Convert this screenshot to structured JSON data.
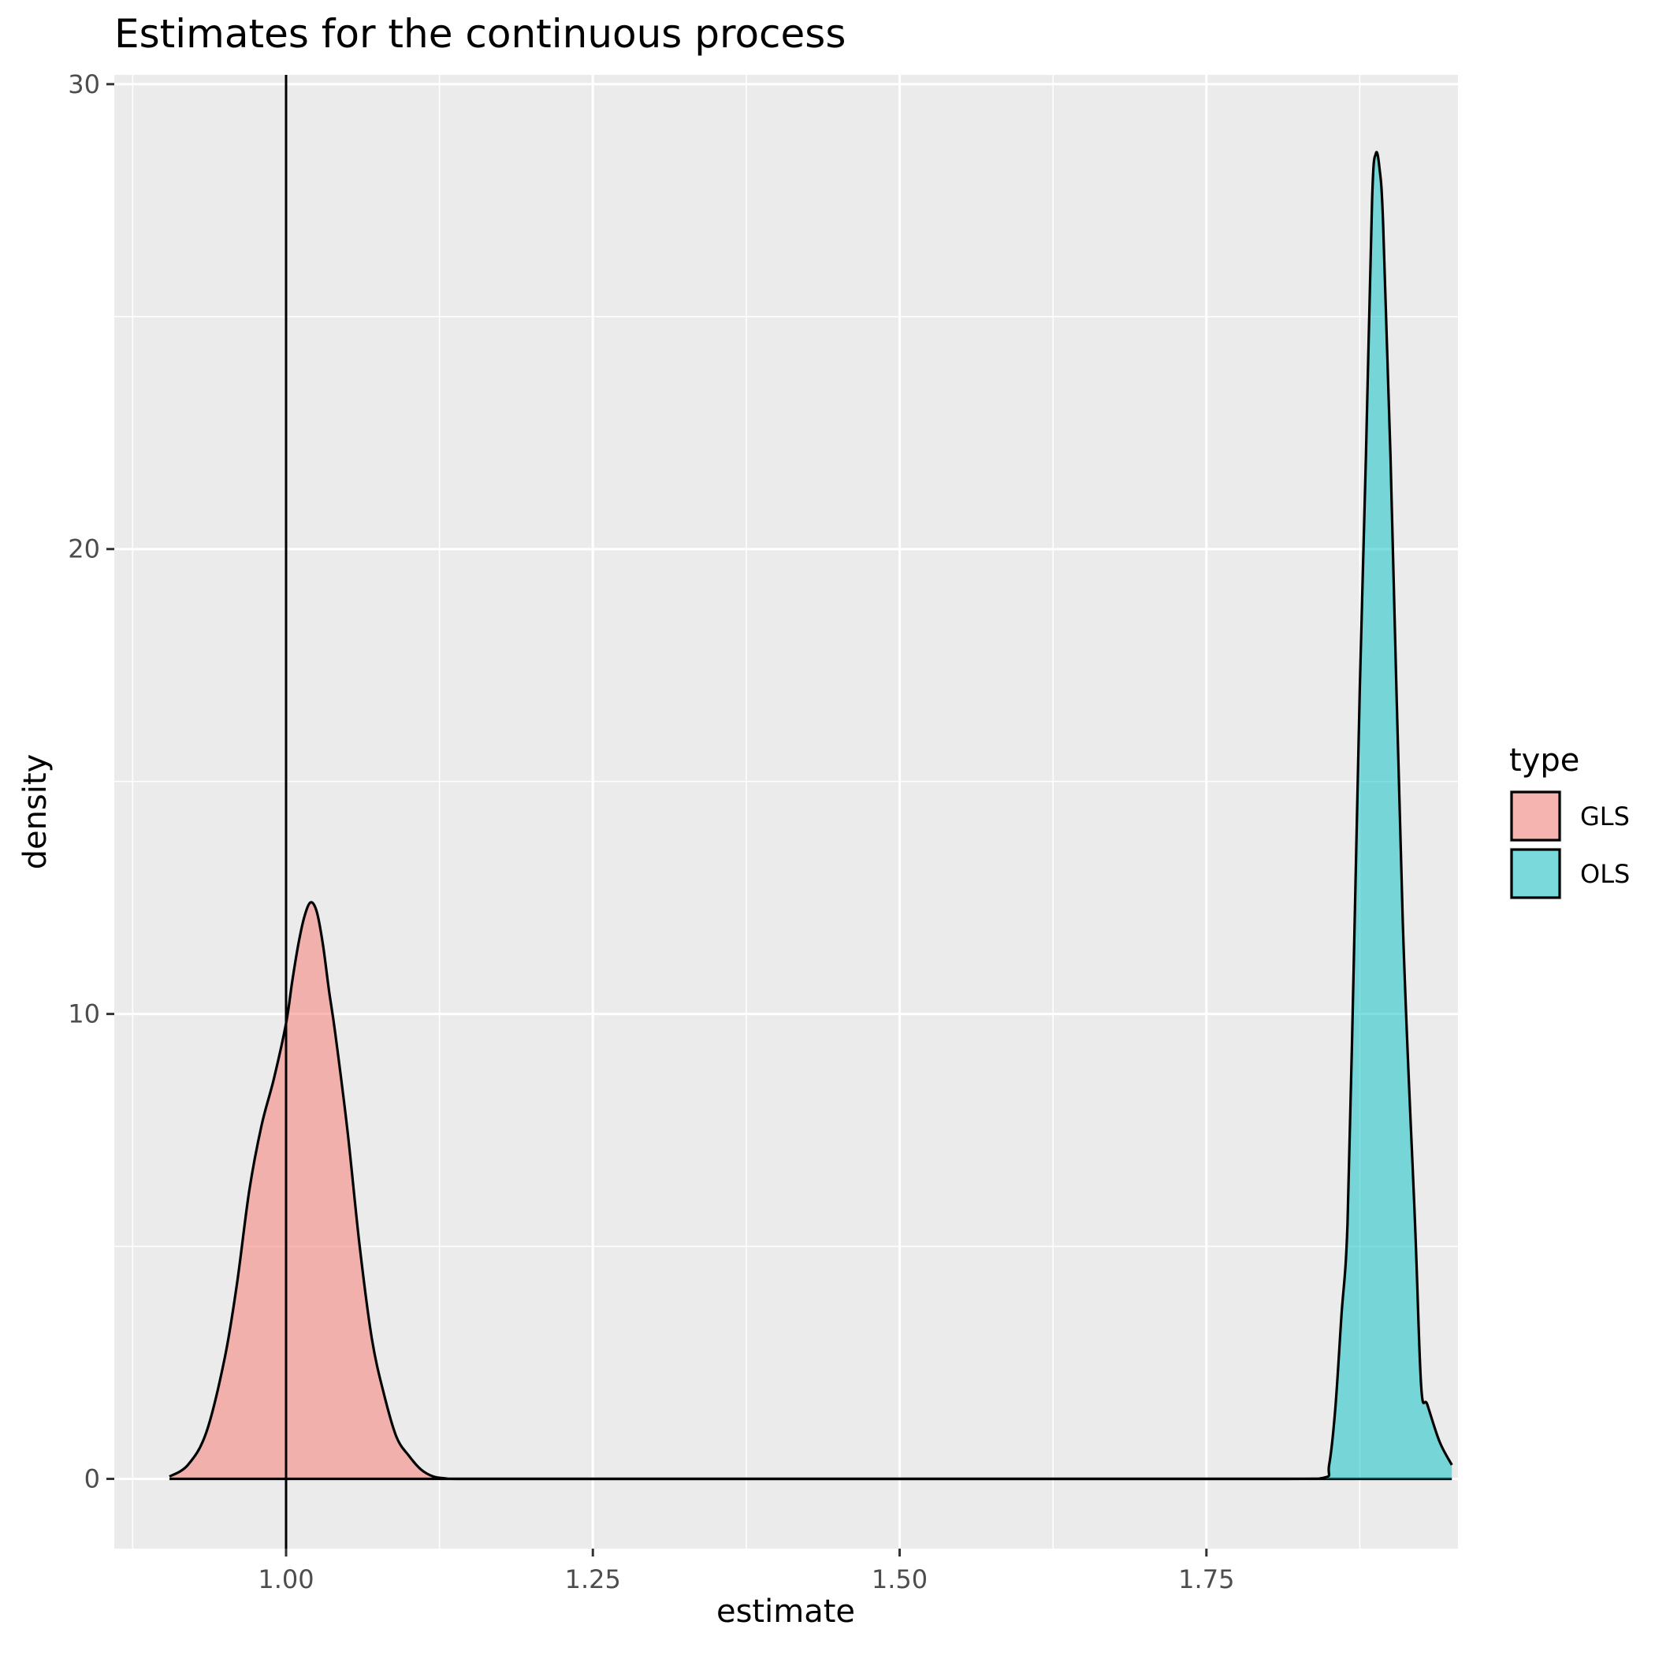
{
  "chart_data": {
    "type": "area",
    "subtype": "density",
    "title": "Estimates for the continuous process",
    "xlabel": "estimate",
    "ylabel": "density",
    "xlim": [
      0.86,
      1.955
    ],
    "ylim": [
      -1.5,
      30.2
    ],
    "x_ticks": [
      1.0,
      1.25,
      1.5,
      1.75
    ],
    "x_tick_labels": [
      "1.00",
      "1.25",
      "1.50",
      "1.75"
    ],
    "y_ticks": [
      0,
      10,
      20,
      30
    ],
    "y_tick_labels": [
      "0",
      "10",
      "20",
      "30"
    ],
    "grid": true,
    "panel_background": "#ebebeb",
    "reference_line": {
      "orientation": "vertical",
      "x": 1.0,
      "color": "#000000"
    },
    "legend": {
      "title": "type",
      "position": "right",
      "entries": [
        "GLS",
        "OLS"
      ]
    },
    "series": [
      {
        "name": "GLS",
        "fill": "#F8766D",
        "fill_opacity": 0.5,
        "x": [
          0.905,
          0.92,
          0.935,
          0.95,
          0.96,
          0.97,
          0.98,
          0.99,
          1.0,
          1.005,
          1.01,
          1.015,
          1.02,
          1.025,
          1.03,
          1.035,
          1.04,
          1.05,
          1.06,
          1.07,
          1.08,
          1.09,
          1.1,
          1.11,
          1.12,
          1.13,
          1.14,
          1.2,
          1.5,
          1.75,
          1.8,
          1.85,
          1.88,
          1.9,
          1.95
        ],
        "y": [
          0.05,
          0.3,
          1.0,
          2.6,
          4.2,
          6.2,
          7.6,
          8.6,
          9.8,
          10.7,
          11.5,
          12.1,
          12.4,
          12.2,
          11.5,
          10.5,
          9.6,
          7.5,
          5.0,
          3.0,
          1.8,
          0.9,
          0.5,
          0.2,
          0.05,
          0.01,
          0.0,
          0.0,
          0.0,
          0.0,
          0.0,
          0.0,
          0.0,
          0.0,
          0.0
        ]
      },
      {
        "name": "OLS",
        "fill": "#00BFC4",
        "fill_opacity": 0.5,
        "x": [
          0.905,
          1.0,
          1.2,
          1.5,
          1.8,
          1.845,
          1.85,
          1.855,
          1.86,
          1.865,
          1.87,
          1.875,
          1.88,
          1.885,
          1.888,
          1.891,
          1.894,
          1.9,
          1.91,
          1.92,
          1.925,
          1.93,
          1.94,
          1.95
        ],
        "y": [
          0.0,
          0.0,
          0.0,
          0.0,
          0.0,
          0.02,
          0.3,
          1.5,
          3.5,
          5.5,
          11.0,
          17.0,
          22.0,
          27.5,
          28.5,
          28.2,
          27.0,
          22.0,
          12.0,
          5.5,
          2.0,
          1.6,
          0.8,
          0.3
        ]
      }
    ]
  }
}
